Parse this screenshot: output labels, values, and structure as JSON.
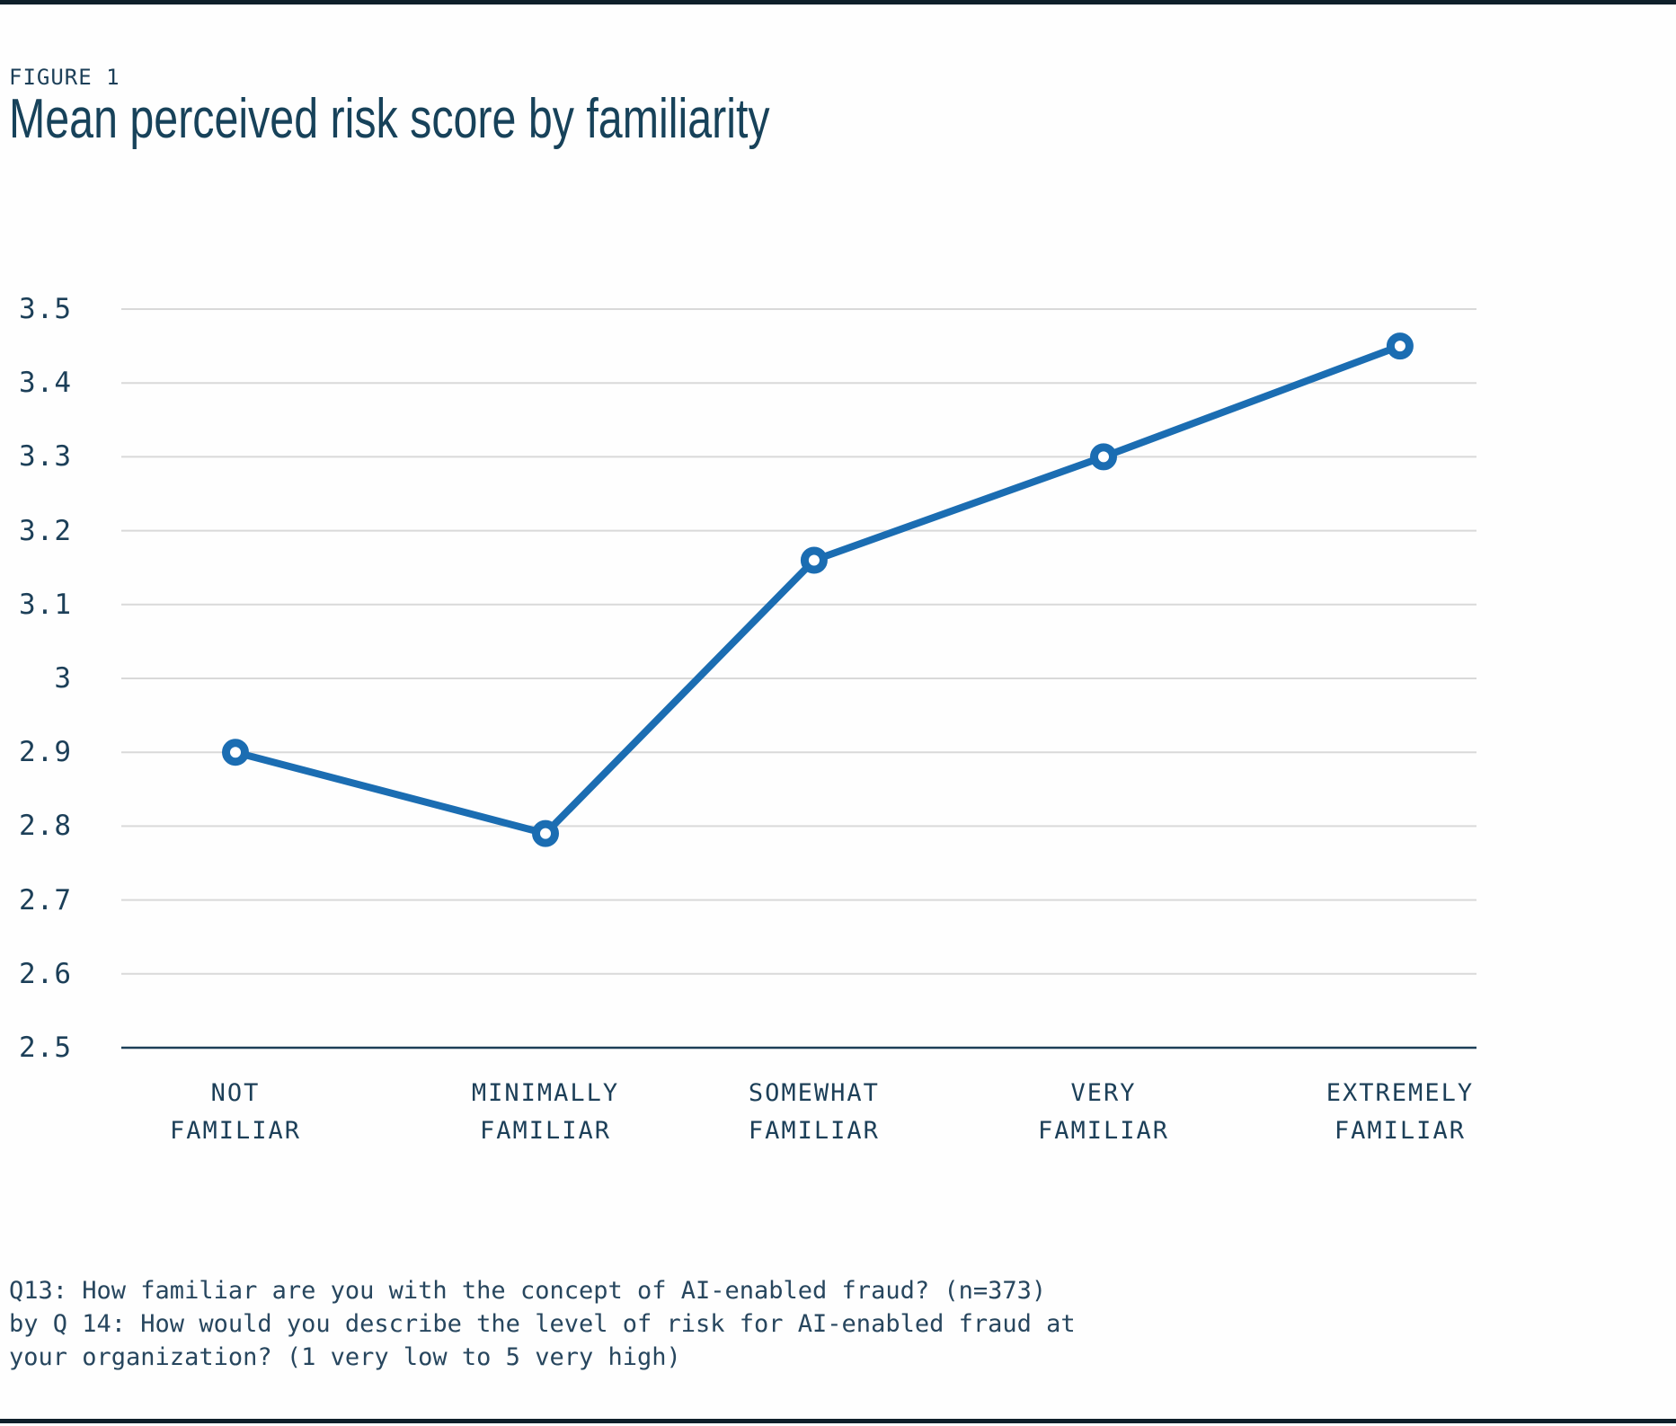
{
  "figure": {
    "label": "FIGURE 1",
    "title": "Mean perceived risk score by familiarity"
  },
  "chart_data": {
    "type": "line",
    "title": "Mean perceived risk score by familiarity",
    "categories": [
      [
        "NOT",
        "FAMILIAR"
      ],
      [
        "MINIMALLY",
        "FAMILIAR"
      ],
      [
        "SOMEWHAT",
        "FAMILIAR"
      ],
      [
        "VERY",
        "FAMILIAR"
      ],
      [
        "EXTREMELY",
        "FAMILIAR"
      ]
    ],
    "values": [
      2.9,
      2.79,
      3.16,
      3.3,
      3.45
    ],
    "xlabel": "",
    "ylabel": "",
    "ylim": [
      2.5,
      3.5
    ],
    "ytick_step": 0.1,
    "ytick_labels": [
      "2.5",
      "2.6",
      "2.7",
      "2.8",
      "2.9",
      "3",
      "3.1",
      "3.2",
      "3.3",
      "3.4",
      "3.5"
    ],
    "grid": "horizontal",
    "legend": "none",
    "line_color": "#1b6db2",
    "marker_style": "open-circle",
    "gridline_color": "#d9d9d9",
    "axis_color": "#1c3f58"
  },
  "footnote": {
    "lines": [
      "Q13: How familiar are you with the concept of AI-enabled fraud? (n=373)",
      "by Q 14: How would you describe the level of risk for AI-enabled fraud at",
      "your organization? (1 very low to 5 very high)"
    ]
  }
}
